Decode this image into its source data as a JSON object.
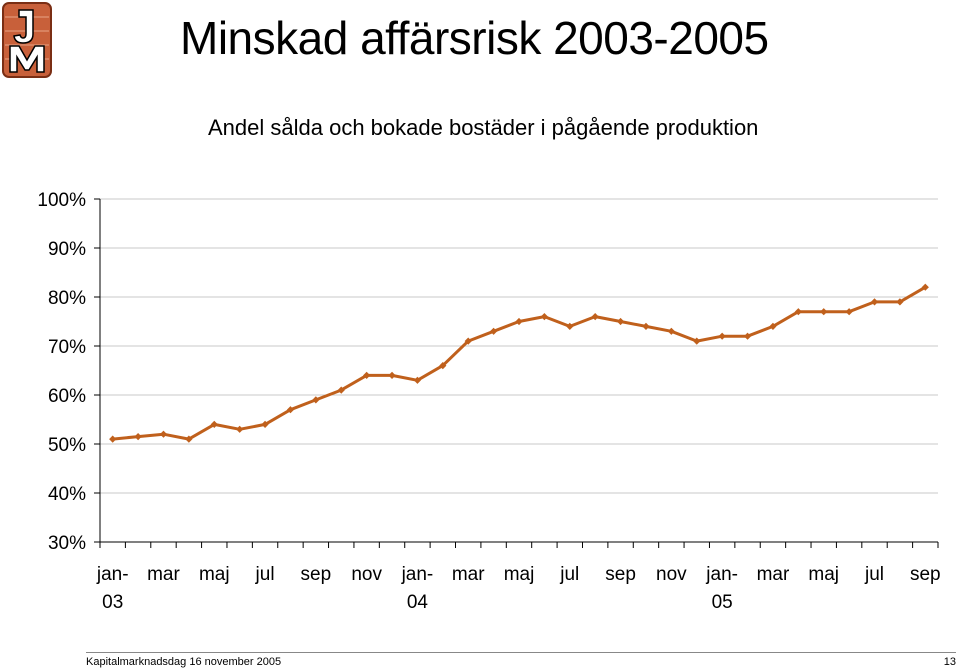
{
  "page": {
    "title": "Minskad affärsrisk 2003-2005",
    "logo_text": "JM",
    "footer_text": "Kapitalmarknadsdag 16 november 2005",
    "page_number": "13"
  },
  "colors": {
    "series": "#C0601C",
    "logo": "#C8603A",
    "gridline": "#c8c8c8"
  },
  "chart_data": {
    "type": "line",
    "title": "Andel sålda och bokade bostäder i pågående produktion",
    "xlabel": "",
    "ylabel": "",
    "ylim": [
      0.3,
      1.0
    ],
    "y_ticks": [
      "30%",
      "40%",
      "50%",
      "60%",
      "70%",
      "80%",
      "90%",
      "100%"
    ],
    "grid": true,
    "legend": "none",
    "x_labels": [
      "jan-03",
      "mar",
      "maj",
      "jul",
      "sep",
      "nov",
      "jan-04",
      "mar",
      "maj",
      "jul",
      "sep",
      "nov",
      "jan-05",
      "mar",
      "maj",
      "jul",
      "sep"
    ],
    "x": [
      "jan-03",
      "feb-03",
      "mar-03",
      "apr-03",
      "maj-03",
      "jun-03",
      "jul-03",
      "aug-03",
      "sep-03",
      "okt-03",
      "nov-03",
      "dec-03",
      "jan-04",
      "feb-04",
      "mar-04",
      "apr-04",
      "maj-04",
      "jun-04",
      "jul-04",
      "aug-04",
      "sep-04",
      "okt-04",
      "nov-04",
      "dec-04",
      "jan-05",
      "feb-05",
      "mar-05",
      "apr-05",
      "maj-05",
      "jun-05",
      "jul-05",
      "aug-05",
      "sep-05"
    ],
    "series": [
      {
        "values": [
          0.51,
          0.515,
          0.52,
          0.51,
          0.54,
          0.53,
          0.54,
          0.57,
          0.59,
          0.61,
          0.64,
          0.64,
          0.63,
          0.66,
          0.71,
          0.73,
          0.75,
          0.76,
          0.74,
          0.76,
          0.75,
          0.74,
          0.73,
          0.71,
          0.72,
          0.72,
          0.74,
          0.77,
          0.77,
          0.77,
          0.79,
          0.79,
          0.82
        ]
      }
    ]
  }
}
